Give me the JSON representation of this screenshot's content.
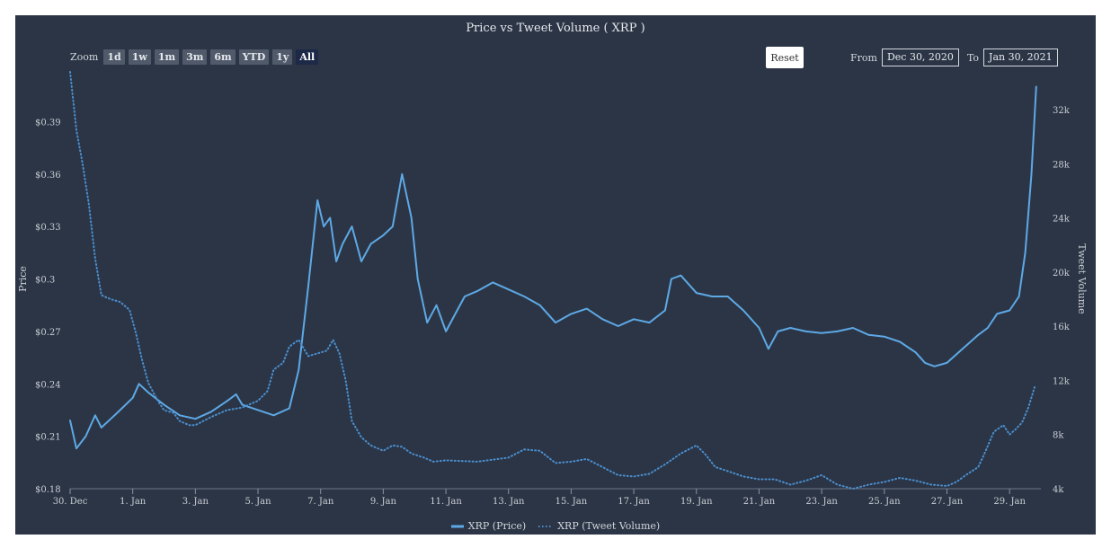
{
  "chart_data": {
    "type": "line",
    "title": "Price vs Tweet Volume ( XRP )",
    "x_range": [
      "2020-12-30",
      "2021-01-30"
    ],
    "x_ticks": [
      "30. Dec",
      "1. Jan",
      "3. Jan",
      "5. Jan",
      "7. Jan",
      "9. Jan",
      "11. Jan",
      "13. Jan",
      "15. Jan",
      "17. Jan",
      "19. Jan",
      "21. Jan",
      "23. Jan",
      "25. Jan",
      "27. Jan",
      "29. Jan"
    ],
    "y_left": {
      "label": "Price",
      "min": 0.18,
      "max": 0.42,
      "ticks": [
        "$0.18",
        "$0.21",
        "$0.24",
        "$0.27",
        "$0.3",
        "$0.33",
        "$0.36",
        "$0.39"
      ]
    },
    "y_right": {
      "label": "Tweet Volume",
      "min": 4000,
      "max": 35000,
      "ticks": [
        "4k",
        "8k",
        "12k",
        "16k",
        "20k",
        "24k",
        "28k",
        "32k"
      ]
    },
    "series": [
      {
        "name": "XRP (Price)",
        "axis": "left",
        "style": "solid",
        "color": "#5da9e6",
        "points": [
          [
            0,
            0.219
          ],
          [
            0.2,
            0.203
          ],
          [
            0.5,
            0.21
          ],
          [
            0.8,
            0.222
          ],
          [
            1,
            0.215
          ],
          [
            1.3,
            0.22
          ],
          [
            1.6,
            0.225
          ],
          [
            2,
            0.232
          ],
          [
            2.2,
            0.24
          ],
          [
            2.5,
            0.235
          ],
          [
            3,
            0.228
          ],
          [
            3.5,
            0.222
          ],
          [
            4,
            0.22
          ],
          [
            4.5,
            0.224
          ],
          [
            5,
            0.23
          ],
          [
            5.3,
            0.234
          ],
          [
            5.5,
            0.228
          ],
          [
            6,
            0.225
          ],
          [
            6.5,
            0.222
          ],
          [
            7,
            0.226
          ],
          [
            7.3,
            0.248
          ],
          [
            7.6,
            0.295
          ],
          [
            7.9,
            0.345
          ],
          [
            8.1,
            0.33
          ],
          [
            8.3,
            0.335
          ],
          [
            8.5,
            0.31
          ],
          [
            8.7,
            0.32
          ],
          [
            9,
            0.33
          ],
          [
            9.3,
            0.31
          ],
          [
            9.6,
            0.32
          ],
          [
            10,
            0.325
          ],
          [
            10.3,
            0.33
          ],
          [
            10.6,
            0.36
          ],
          [
            10.9,
            0.335
          ],
          [
            11.1,
            0.3
          ],
          [
            11.4,
            0.275
          ],
          [
            11.7,
            0.285
          ],
          [
            12,
            0.27
          ],
          [
            12.3,
            0.28
          ],
          [
            12.6,
            0.29
          ],
          [
            13,
            0.293
          ],
          [
            13.5,
            0.298
          ],
          [
            14,
            0.294
          ],
          [
            14.5,
            0.29
          ],
          [
            15,
            0.285
          ],
          [
            15.5,
            0.275
          ],
          [
            16,
            0.28
          ],
          [
            16.5,
            0.283
          ],
          [
            17,
            0.277
          ],
          [
            17.5,
            0.273
          ],
          [
            18,
            0.277
          ],
          [
            18.5,
            0.275
          ],
          [
            19,
            0.282
          ],
          [
            19.2,
            0.3
          ],
          [
            19.5,
            0.302
          ],
          [
            20,
            0.292
          ],
          [
            20.5,
            0.29
          ],
          [
            21,
            0.29
          ],
          [
            21.5,
            0.282
          ],
          [
            22,
            0.272
          ],
          [
            22.3,
            0.26
          ],
          [
            22.6,
            0.27
          ],
          [
            23,
            0.272
          ],
          [
            23.5,
            0.27
          ],
          [
            24,
            0.269
          ],
          [
            24.5,
            0.27
          ],
          [
            25,
            0.272
          ],
          [
            25.5,
            0.268
          ],
          [
            26,
            0.267
          ],
          [
            26.5,
            0.264
          ],
          [
            27,
            0.258
          ],
          [
            27.3,
            0.252
          ],
          [
            27.6,
            0.25
          ],
          [
            28,
            0.252
          ],
          [
            28.5,
            0.26
          ],
          [
            29,
            0.268
          ],
          [
            29.3,
            0.272
          ],
          [
            29.6,
            0.28
          ],
          [
            30,
            0.282
          ],
          [
            30.3,
            0.29
          ],
          [
            30.5,
            0.315
          ],
          [
            30.7,
            0.36
          ],
          [
            30.85,
            0.41
          ]
        ]
      },
      {
        "name": "XRP (Tweet Volume)",
        "axis": "right",
        "style": "dotted",
        "color": "#4a8fd0",
        "points": [
          [
            0,
            34800
          ],
          [
            0.2,
            30500
          ],
          [
            0.4,
            28000
          ],
          [
            0.6,
            25000
          ],
          [
            0.8,
            21000
          ],
          [
            1,
            18300
          ],
          [
            1.3,
            18000
          ],
          [
            1.6,
            17800
          ],
          [
            1.9,
            17200
          ],
          [
            2.1,
            15500
          ],
          [
            2.3,
            13500
          ],
          [
            2.5,
            11800
          ],
          [
            2.8,
            10500
          ],
          [
            3,
            9800
          ],
          [
            3.3,
            9600
          ],
          [
            3.5,
            9000
          ],
          [
            3.8,
            8700
          ],
          [
            4,
            8700
          ],
          [
            4.5,
            9300
          ],
          [
            5,
            9800
          ],
          [
            5.5,
            10000
          ],
          [
            6,
            10500
          ],
          [
            6.3,
            11200
          ],
          [
            6.5,
            12800
          ],
          [
            6.8,
            13300
          ],
          [
            7,
            14500
          ],
          [
            7.3,
            15000
          ],
          [
            7.6,
            13800
          ],
          [
            7.9,
            14000
          ],
          [
            8.2,
            14200
          ],
          [
            8.4,
            15000
          ],
          [
            8.6,
            14000
          ],
          [
            8.8,
            12000
          ],
          [
            9,
            9000
          ],
          [
            9.3,
            7800
          ],
          [
            9.6,
            7200
          ],
          [
            10,
            6800
          ],
          [
            10.3,
            7200
          ],
          [
            10.6,
            7100
          ],
          [
            10.9,
            6600
          ],
          [
            11.3,
            6300
          ],
          [
            11.6,
            6000
          ],
          [
            12,
            6100
          ],
          [
            13,
            6000
          ],
          [
            14,
            6300
          ],
          [
            14.5,
            6900
          ],
          [
            15,
            6800
          ],
          [
            15.5,
            5900
          ],
          [
            16,
            6000
          ],
          [
            16.5,
            6200
          ],
          [
            17,
            5600
          ],
          [
            17.5,
            5000
          ],
          [
            18,
            4900
          ],
          [
            18.5,
            5100
          ],
          [
            19,
            5800
          ],
          [
            19.5,
            6600
          ],
          [
            20,
            7200
          ],
          [
            20.3,
            6500
          ],
          [
            20.6,
            5600
          ],
          [
            21,
            5300
          ],
          [
            21.5,
            4900
          ],
          [
            22,
            4700
          ],
          [
            22.5,
            4700
          ],
          [
            23,
            4300
          ],
          [
            23.5,
            4600
          ],
          [
            24,
            5000
          ],
          [
            24.5,
            4300
          ],
          [
            25,
            4000
          ],
          [
            25.5,
            4300
          ],
          [
            26,
            4500
          ],
          [
            26.5,
            4800
          ],
          [
            27,
            4600
          ],
          [
            27.5,
            4300
          ],
          [
            28,
            4200
          ],
          [
            28.3,
            4500
          ],
          [
            28.6,
            5000
          ],
          [
            29,
            5600
          ],
          [
            29.2,
            6600
          ],
          [
            29.5,
            8200
          ],
          [
            29.8,
            8700
          ],
          [
            30,
            8000
          ],
          [
            30.2,
            8400
          ],
          [
            30.4,
            8900
          ],
          [
            30.6,
            10000
          ],
          [
            30.8,
            11500
          ]
        ]
      }
    ],
    "legend": "bottom-center"
  },
  "controls": {
    "zoom_label": "Zoom",
    "zoom_buttons": [
      "1d",
      "1w",
      "1m",
      "3m",
      "6m",
      "YTD",
      "1y",
      "All"
    ],
    "zoom_active": "All",
    "reset_label": "Reset",
    "from_label": "From",
    "from_value": "Dec 30, 2020",
    "to_label": "To",
    "to_value": "Jan 30, 2021"
  },
  "colors": {
    "background": "#2c3545",
    "price_line": "#5da9e6",
    "volume_line": "#4a8fd0",
    "axis_text": "#c9ced6"
  }
}
